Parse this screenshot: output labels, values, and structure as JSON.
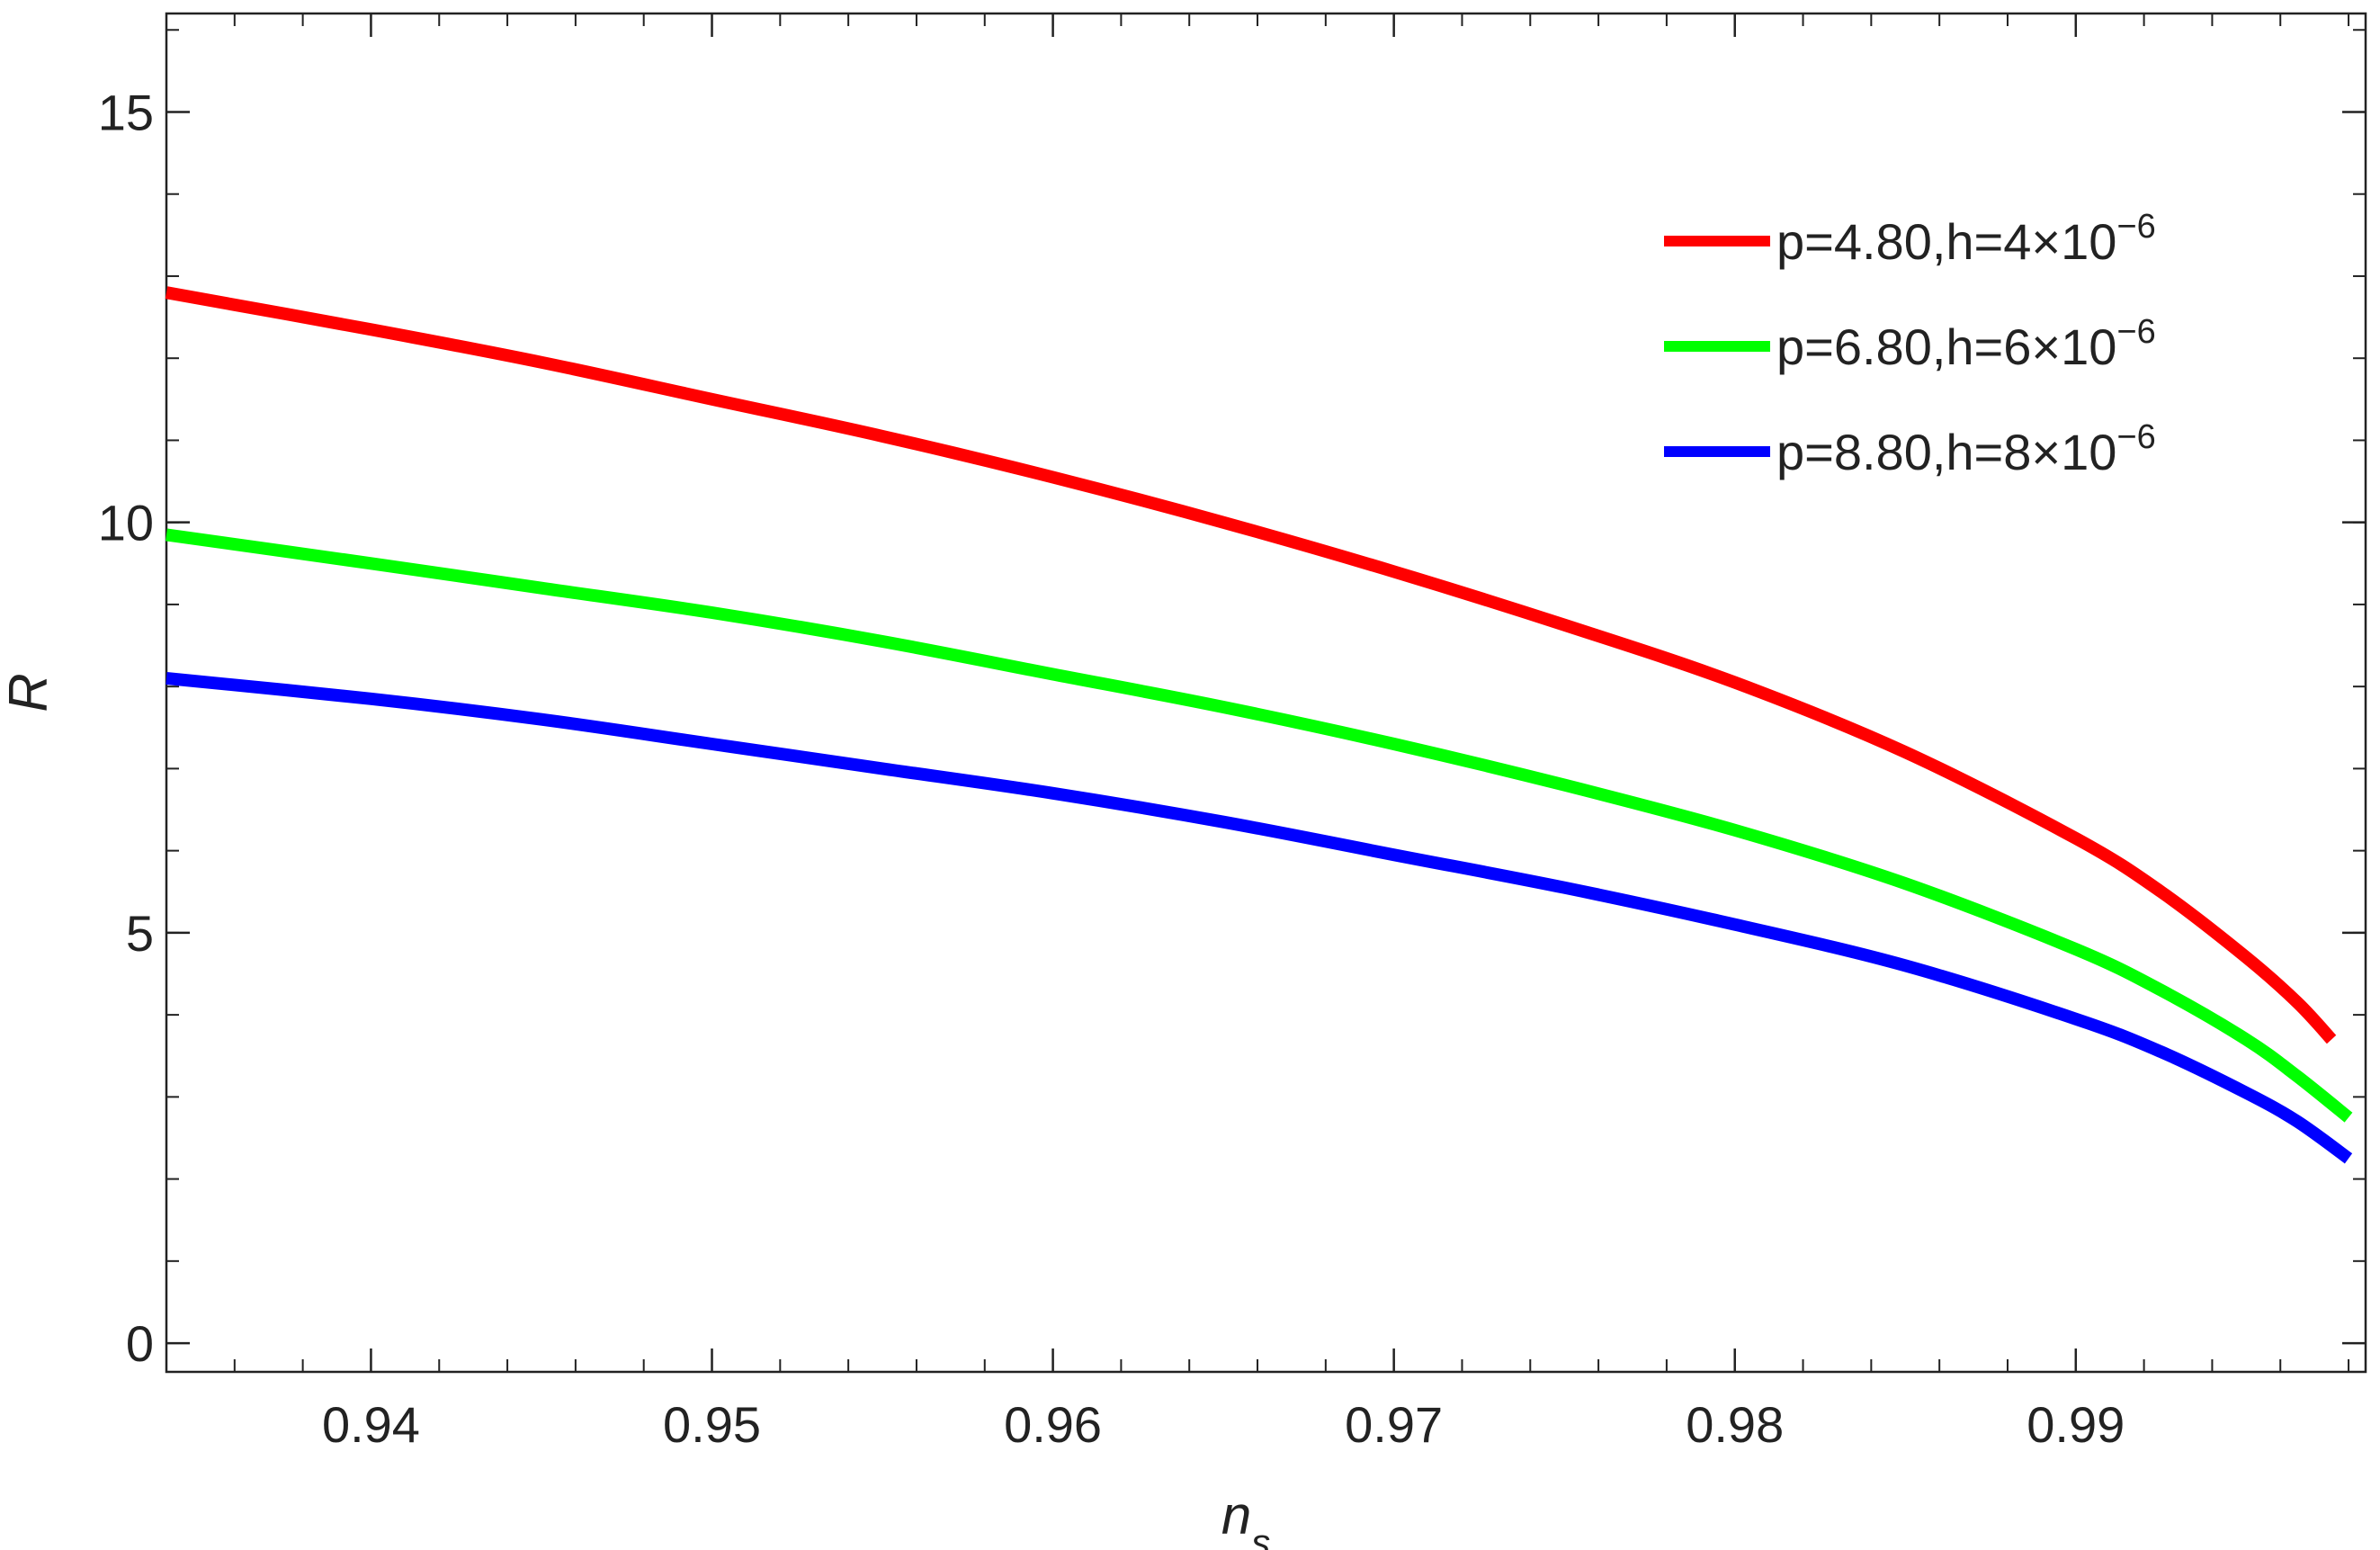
{
  "chart_data": {
    "type": "line",
    "title": "",
    "xlabel": "n",
    "xlabel_sub": "s",
    "ylabel": "R",
    "xlim": [
      0.934,
      0.9985
    ],
    "ylim": [
      -0.35,
      16.2
    ],
    "grid": false,
    "legend_position": "top-right",
    "x_ticks": [
      {
        "value": 0.94,
        "label": "0.94"
      },
      {
        "value": 0.95,
        "label": "0.95"
      },
      {
        "value": 0.96,
        "label": "0.96"
      },
      {
        "value": 0.97,
        "label": "0.97"
      },
      {
        "value": 0.98,
        "label": "0.98"
      },
      {
        "value": 0.99,
        "label": "0.99"
      }
    ],
    "x_minor_step": 0.002,
    "y_ticks": [
      {
        "value": 0,
        "label": "0"
      },
      {
        "value": 5,
        "label": "5"
      },
      {
        "value": 10,
        "label": "10"
      },
      {
        "value": 15,
        "label": "15"
      }
    ],
    "y_minor_step": 1,
    "series": [
      {
        "name_main": "p=4.80,h=4×10",
        "name_exp": "−6",
        "color": "#ff0000",
        "points": [
          [
            0.934,
            12.8
          ],
          [
            0.94,
            12.35
          ],
          [
            0.945,
            11.95
          ],
          [
            0.95,
            11.5
          ],
          [
            0.955,
            11.05
          ],
          [
            0.96,
            10.55
          ],
          [
            0.965,
            10.0
          ],
          [
            0.97,
            9.4
          ],
          [
            0.975,
            8.75
          ],
          [
            0.98,
            8.05
          ],
          [
            0.985,
            7.2
          ],
          [
            0.99,
            6.15
          ],
          [
            0.9925,
            5.5
          ],
          [
            0.995,
            4.7
          ],
          [
            0.9965,
            4.15
          ],
          [
            0.9975,
            3.7
          ]
        ]
      },
      {
        "name_main": "p=6.80,h=6×10",
        "name_exp": "−6",
        "color": "#00ff00",
        "points": [
          [
            0.934,
            9.85
          ],
          [
            0.94,
            9.5
          ],
          [
            0.945,
            9.2
          ],
          [
            0.95,
            8.9
          ],
          [
            0.955,
            8.55
          ],
          [
            0.96,
            8.15
          ],
          [
            0.965,
            7.75
          ],
          [
            0.97,
            7.3
          ],
          [
            0.975,
            6.8
          ],
          [
            0.98,
            6.25
          ],
          [
            0.985,
            5.6
          ],
          [
            0.99,
            4.8
          ],
          [
            0.9925,
            4.3
          ],
          [
            0.995,
            3.7
          ],
          [
            0.9965,
            3.25
          ],
          [
            0.998,
            2.75
          ]
        ]
      },
      {
        "name_main": "p=8.80,h=8×10",
        "name_exp": "−6",
        "color": "#0000ff",
        "points": [
          [
            0.934,
            8.1
          ],
          [
            0.94,
            7.85
          ],
          [
            0.945,
            7.6
          ],
          [
            0.95,
            7.3
          ],
          [
            0.955,
            7.0
          ],
          [
            0.96,
            6.7
          ],
          [
            0.965,
            6.35
          ],
          [
            0.97,
            5.95
          ],
          [
            0.975,
            5.55
          ],
          [
            0.98,
            5.1
          ],
          [
            0.985,
            4.6
          ],
          [
            0.99,
            3.95
          ],
          [
            0.9925,
            3.55
          ],
          [
            0.995,
            3.05
          ],
          [
            0.9965,
            2.7
          ],
          [
            0.998,
            2.25
          ]
        ]
      }
    ]
  }
}
